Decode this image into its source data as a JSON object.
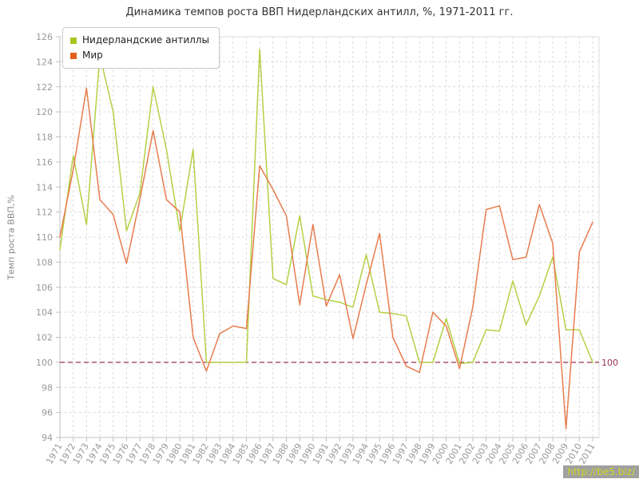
{
  "title": "Динамика темпов роста ВВП Нидерландских антилл, %, 1971-2011 гг.",
  "watermark": {
    "text": "http://be5.biz/",
    "bg": "#a0a0a0",
    "fg": "#ccdc1f"
  },
  "colors": {
    "axis": "#c0c0c0",
    "grid": "#dcdcdc",
    "tick_text": "#999999",
    "title_text": "#333333",
    "plot_bg": "#ffffff"
  },
  "chart_data": {
    "type": "line",
    "title": "Динамика темпов роста ВВП Нидерландских антилл, %, 1971-2011 гг.",
    "xlabel": "",
    "ylabel": "Темп роста ВВП,%",
    "ylim": [
      94,
      126
    ],
    "ytick_step": 2,
    "grid": true,
    "legend_position": "top-left",
    "ref_line": {
      "value": 100,
      "label": "100",
      "color": "#993350"
    },
    "x": [
      1971,
      1972,
      1973,
      1974,
      1975,
      1976,
      1977,
      1978,
      1979,
      1980,
      1981,
      1982,
      1983,
      1984,
      1985,
      1986,
      1987,
      1988,
      1989,
      1990,
      1991,
      1992,
      1993,
      1994,
      1995,
      1996,
      1997,
      1998,
      1999,
      2000,
      2001,
      2002,
      2003,
      2004,
      2005,
      2006,
      2007,
      2008,
      2009,
      2010,
      2011
    ],
    "series": [
      {
        "name": "Нидерландские антиллы",
        "color": "#b5d044",
        "swatch": "#a6c71f",
        "values": [
          109,
          116.5,
          111,
          124.5,
          120,
          110.5,
          113.5,
          122,
          117,
          110.5,
          117,
          100,
          100,
          100,
          100,
          125,
          106.7,
          106.2,
          111.7,
          105.3,
          105,
          104.8,
          104.4,
          108.6,
          104,
          103.9,
          103.7,
          100,
          100,
          103.5,
          99.9,
          100,
          102.6,
          102.5,
          106.5,
          103,
          105.3,
          108.4,
          102.6,
          102.6,
          100
        ]
      },
      {
        "name": "Мир",
        "color": "#e87c4e",
        "swatch": "#e2611c",
        "values": [
          110,
          115.4,
          121.9,
          113,
          111.8,
          107.9,
          113,
          118.5,
          113,
          112,
          102,
          99.3,
          102.3,
          102.9,
          102.7,
          115.7,
          113.8,
          111.7,
          104.6,
          111,
          104.5,
          107,
          101.9,
          106.2,
          110.3,
          102,
          99.7,
          99.2,
          104,
          102.9,
          99.5,
          104.4,
          112.2,
          112.5,
          108.2,
          108.4,
          112.6,
          109.5,
          94.7,
          108.8,
          111.2
        ]
      }
    ]
  }
}
